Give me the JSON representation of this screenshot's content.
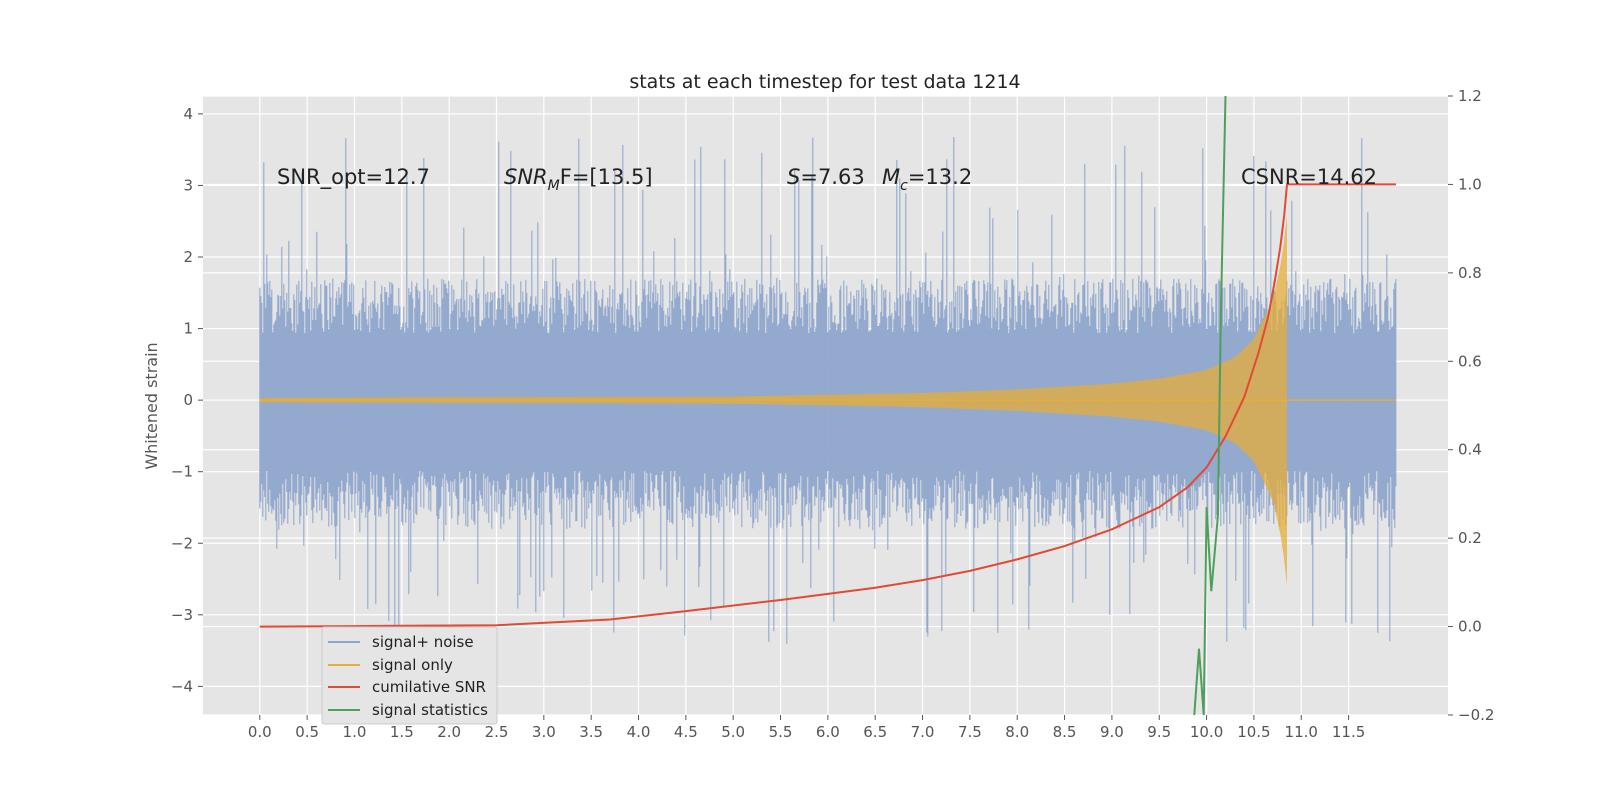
{
  "chart_data": {
    "type": "line",
    "title": "stats at each timestep for test data 1214",
    "xlabel": "",
    "ylabel": "Whitened strain",
    "xlim": [
      -0.6,
      12.55
    ],
    "ylim": [
      -4.4,
      4.25
    ],
    "ylim_right": [
      -0.2,
      1.2
    ],
    "x_ticks": [
      "0.0",
      "0.5",
      "1.0",
      "1.5",
      "2.0",
      "2.5",
      "3.0",
      "3.5",
      "4.0",
      "4.5",
      "5.0",
      "5.5",
      "6.0",
      "6.5",
      "7.0",
      "7.5",
      "8.0",
      "8.5",
      "9.0",
      "9.5",
      "10.0",
      "10.5",
      "11.0",
      "11.5"
    ],
    "y_ticks": [
      "4",
      "3",
      "2",
      "1",
      "0",
      "−1",
      "−2",
      "−3",
      "−4"
    ],
    "y_ticks_right": [
      "1.2",
      "1.0",
      "0.8",
      "0.6",
      "0.4",
      "0.2",
      "0.0",
      "−0.2"
    ],
    "grid": true,
    "legend_position": "lower-left",
    "annotations": {
      "snr_opt": "SNR_opt=12.7",
      "snr_mf_main": "SNR",
      "snr_mf_sub": "M",
      "snr_mf_rest": "F=[13.5]",
      "s_main": "S",
      "s_rest": "=7.63",
      "mc_main": "M",
      "mc_sub": "c",
      "mc_rest": "=13.2",
      "csnr": "CSNR=14.62"
    },
    "noise_envelope": {
      "x_range": [
        0.0,
        12.0
      ],
      "typical_upper": 1.7,
      "typical_lower": -1.8,
      "max_peak": 3.9,
      "min_peak": -3.6
    },
    "series": [
      {
        "name": "signal+ noise",
        "color": "#8ea5cc",
        "axis": "left",
        "style": "dense-noise"
      },
      {
        "name": "signal only",
        "color": "#e5ae38",
        "axis": "left",
        "style": "chirp",
        "x_range": [
          0.0,
          10.85
        ],
        "envelope": [
          [
            0.0,
            0.03
          ],
          [
            2.0,
            0.04
          ],
          [
            5.0,
            0.05
          ],
          [
            7.0,
            0.1
          ],
          [
            8.0,
            0.15
          ],
          [
            9.0,
            0.23
          ],
          [
            9.5,
            0.3
          ],
          [
            10.0,
            0.42
          ],
          [
            10.3,
            0.6
          ],
          [
            10.5,
            0.85
          ],
          [
            10.7,
            1.4
          ],
          [
            10.8,
            2.0
          ],
          [
            10.85,
            2.6
          ]
        ]
      },
      {
        "name": "cumilative SNR",
        "color": "#e24a33",
        "axis": "right",
        "x": [
          0.0,
          1.0,
          2.5,
          3.7,
          4.5,
          5.5,
          6.0,
          6.5,
          7.0,
          7.5,
          8.0,
          8.5,
          9.0,
          9.5,
          9.8,
          10.0,
          10.2,
          10.4,
          10.55,
          10.65,
          10.72,
          10.78,
          10.82,
          10.85,
          12.0
        ],
        "y": [
          0.0,
          0.001,
          0.003,
          0.016,
          0.035,
          0.06,
          0.074,
          0.088,
          0.105,
          0.126,
          0.152,
          0.182,
          0.22,
          0.27,
          0.315,
          0.36,
          0.43,
          0.52,
          0.62,
          0.7,
          0.78,
          0.86,
          0.93,
          1.0,
          1.0
        ]
      },
      {
        "name": "signal statistics",
        "color": "#348abd",
        "display_color": "#4f9f5c",
        "axis": "right",
        "x": [
          9.87,
          9.92,
          9.97,
          10.0,
          10.05,
          10.12,
          10.15,
          10.2
        ],
        "y": [
          -0.2,
          -0.05,
          -0.2,
          0.27,
          0.08,
          0.25,
          0.7,
          1.2
        ]
      }
    ]
  }
}
